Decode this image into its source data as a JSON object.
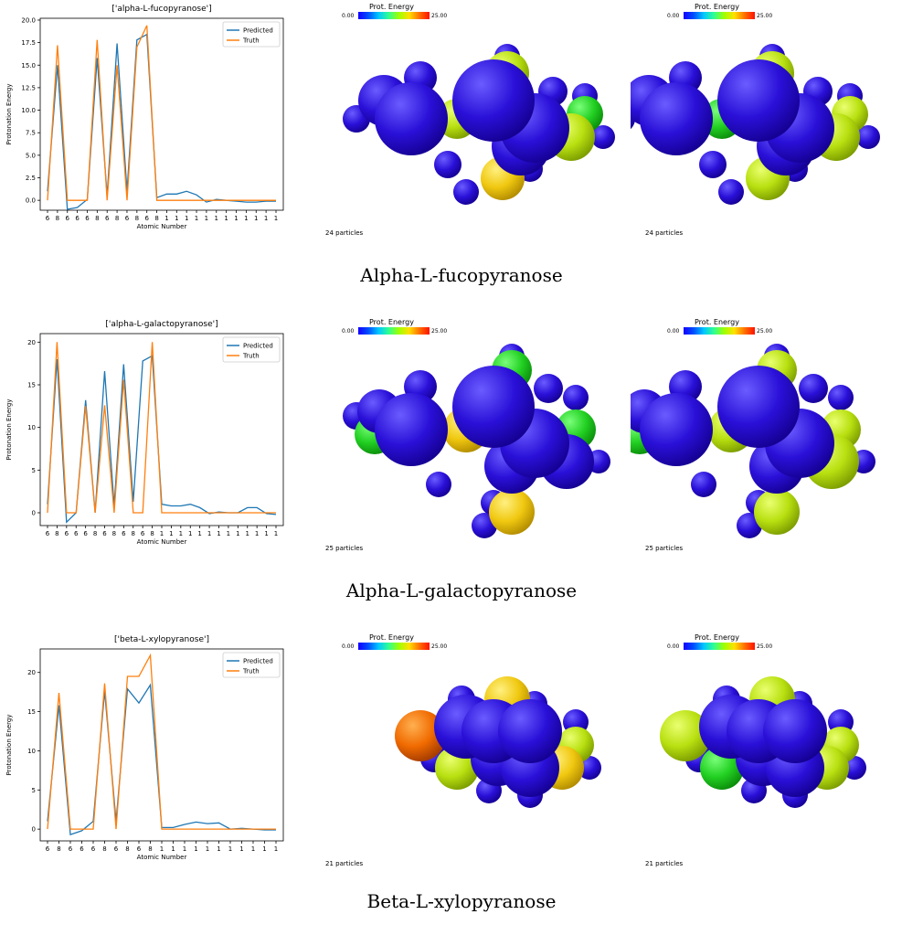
{
  "colorbar": {
    "title": "Prot. Energy",
    "min_label": "0.00",
    "max_label": "25.00"
  },
  "rows": [
    {
      "caption": "Alpha-L-fucopyranose",
      "particles_label": "24 particles",
      "panels": [
        {
          "balls": [
            [
              "blue",
              210,
              110,
              28
            ],
            [
              "blue",
              240,
              130,
              40
            ],
            [
              "blue",
              250,
              85,
              18
            ],
            [
              "blue",
              180,
              130,
              15
            ],
            [
              "blue",
              280,
              180,
              15
            ],
            [
              "yellow-green",
              290,
              130,
              22
            ],
            [
              "blue",
              330,
              110,
              45
            ],
            [
              "blue",
              375,
              140,
              38
            ],
            [
              "blue",
              360,
              160,
              32
            ],
            [
              "yellow-green",
              345,
              80,
              24
            ],
            [
              "blue",
              345,
              62,
              14
            ],
            [
              "blue",
              395,
              100,
              16
            ],
            [
              "blue",
              430,
              105,
              14
            ],
            [
              "green",
              430,
              125,
              20
            ],
            [
              "yellow-green",
              415,
              150,
              26
            ],
            [
              "blue",
              450,
              150,
              13
            ],
            [
              "yellow",
              340,
              195,
              24
            ],
            [
              "blue",
              300,
              210,
              14
            ],
            [
              "blue",
              345,
              185,
              14
            ],
            [
              "blue",
              370,
              185,
              14
            ]
          ]
        },
        {
          "balls": [
            [
              "blue",
              150,
              110,
              28
            ],
            [
              "blue",
              180,
              130,
              40
            ],
            [
              "blue",
              190,
              85,
              18
            ],
            [
              "blue",
              120,
              130,
              15
            ],
            [
              "blue",
              220,
              180,
              15
            ],
            [
              "green",
              230,
              130,
              22
            ],
            [
              "blue",
              270,
              110,
              45
            ],
            [
              "blue",
              315,
              140,
              38
            ],
            [
              "blue",
              300,
              160,
              32
            ],
            [
              "yellow-green",
              285,
              80,
              24
            ],
            [
              "blue",
              285,
              62,
              14
            ],
            [
              "blue",
              335,
              100,
              16
            ],
            [
              "blue",
              370,
              105,
              14
            ],
            [
              "yellow-green",
              370,
              125,
              20
            ],
            [
              "yellow-green",
              355,
              150,
              26
            ],
            [
              "blue",
              390,
              150,
              13
            ],
            [
              "yellow-green",
              280,
              195,
              24
            ],
            [
              "blue",
              240,
              210,
              14
            ],
            [
              "blue",
              285,
              185,
              14
            ],
            [
              "blue",
              310,
              185,
              14
            ]
          ]
        }
      ],
      "chart_data": {
        "type": "line",
        "title": "['alpha-L-fucopyranose']",
        "xlabel": "Atomic Number",
        "ylabel": "Protonation Energy",
        "categories": [
          "6",
          "8",
          "6",
          "6",
          "6",
          "8",
          "6",
          "8",
          "6",
          "8",
          "6",
          "8",
          "1",
          "1",
          "1",
          "1",
          "1",
          "1",
          "1",
          "1",
          "1",
          "1",
          "1",
          "1"
        ],
        "ylim": [
          -1.1,
          20.2
        ],
        "yticks": [
          "0.0",
          "2.5",
          "5.0",
          "7.5",
          "10.0",
          "12.5",
          "15.0",
          "17.5",
          "20.0"
        ],
        "ytick_values": [
          0,
          2.5,
          5,
          7.5,
          10,
          12.5,
          15,
          17.5,
          20
        ],
        "legend": "top-right",
        "series": [
          {
            "name": "Predicted",
            "color": "#1f77b4",
            "values": [
              1.0,
              15.0,
              -1.0,
              -0.8,
              0.1,
              15.8,
              0.5,
              17.4,
              1.0,
              17.8,
              18.4,
              0.3,
              0.7,
              0.7,
              1.0,
              0.6,
              -0.2,
              0.1,
              0.0,
              -0.1,
              -0.2,
              -0.2,
              -0.1,
              -0.1
            ]
          },
          {
            "name": "Truth",
            "color": "#ff7f0e",
            "values": [
              0.0,
              17.2,
              0.0,
              0.0,
              0.0,
              17.8,
              0.0,
              15.0,
              0.0,
              17.0,
              19.4,
              0.0,
              0.0,
              0.0,
              0.0,
              0.0,
              0.0,
              0.0,
              0.0,
              0.0,
              0.0,
              0.0,
              0.0,
              0.0
            ]
          }
        ]
      }
    },
    {
      "caption": "Alpha-L-galactopyranose",
      "particles_label": "25 particles",
      "panels": [
        {
          "balls": [
            [
              "blue",
              205,
              105,
              24
            ],
            [
              "blue",
              240,
              125,
              40
            ],
            [
              "blue",
              250,
              78,
              18
            ],
            [
              "blue",
              180,
              110,
              15
            ],
            [
              "green",
              200,
              130,
              22
            ],
            [
              "yellow",
              300,
              125,
              25
            ],
            [
              "blue",
              330,
              100,
              45
            ],
            [
              "blue",
              375,
              140,
              38
            ],
            [
              "green",
              350,
              60,
              22
            ],
            [
              "blue",
              350,
              45,
              14
            ],
            [
              "blue",
              390,
              80,
              16
            ],
            [
              "blue",
              420,
              90,
              14
            ],
            [
              "green",
              420,
              125,
              22
            ],
            [
              "blue",
              410,
              160,
              30
            ],
            [
              "blue",
              445,
              160,
              13
            ],
            [
              "blue",
              350,
              165,
              30
            ],
            [
              "blue",
              330,
              205,
              14
            ],
            [
              "yellow",
              350,
              215,
              25
            ],
            [
              "blue",
              320,
              230,
              14
            ],
            [
              "blue",
              270,
              185,
              14
            ]
          ]
        },
        {
          "balls": [
            [
              "blue",
              145,
              105,
              24
            ],
            [
              "blue",
              180,
              125,
              40
            ],
            [
              "blue",
              190,
              78,
              18
            ],
            [
              "blue",
              120,
              110,
              15
            ],
            [
              "green",
              140,
              130,
              22
            ],
            [
              "yellow-green",
              240,
              125,
              25
            ],
            [
              "blue",
              270,
              100,
              45
            ],
            [
              "blue",
              315,
              140,
              38
            ],
            [
              "yellow-green",
              290,
              60,
              22
            ],
            [
              "blue",
              290,
              45,
              14
            ],
            [
              "blue",
              330,
              80,
              16
            ],
            [
              "blue",
              360,
              90,
              14
            ],
            [
              "yellow-green",
              360,
              125,
              22
            ],
            [
              "yellow-green",
              350,
              160,
              30
            ],
            [
              "blue",
              385,
              160,
              13
            ],
            [
              "blue",
              290,
              165,
              30
            ],
            [
              "blue",
              270,
              205,
              14
            ],
            [
              "yellow-green",
              290,
              215,
              25
            ],
            [
              "blue",
              260,
              230,
              14
            ],
            [
              "blue",
              210,
              185,
              14
            ]
          ]
        }
      ],
      "chart_data": {
        "type": "line",
        "title": "['alpha-L-galactopyranose']",
        "xlabel": "Atomic Number",
        "ylabel": "Protonation Energy",
        "categories": [
          "6",
          "8",
          "6",
          "6",
          "6",
          "8",
          "6",
          "8",
          "6",
          "8",
          "6",
          "8",
          "1",
          "1",
          "1",
          "1",
          "1",
          "1",
          "1",
          "1",
          "1",
          "1",
          "1",
          "1",
          "1"
        ],
        "ylim": [
          -1.5,
          21.0
        ],
        "yticks": [
          "0",
          "5",
          "10",
          "15",
          "20"
        ],
        "ytick_values": [
          0,
          5,
          10,
          15,
          20
        ],
        "legend": "top-right",
        "series": [
          {
            "name": "Predicted",
            "color": "#1f77b4",
            "values": [
              1.0,
              18.0,
              -1.1,
              0.0,
              13.2,
              0.0,
              16.6,
              0.8,
              17.4,
              1.3,
              17.8,
              18.4,
              1.0,
              0.8,
              0.8,
              1.0,
              0.6,
              -0.1,
              0.1,
              0.0,
              0.0,
              0.6,
              0.6,
              -0.1,
              -0.2
            ]
          },
          {
            "name": "Truth",
            "color": "#ff7f0e",
            "values": [
              0.0,
              20.0,
              0.0,
              0.0,
              12.5,
              0.0,
              12.6,
              0.0,
              15.6,
              0.0,
              0.0,
              20.0,
              0.0,
              0.0,
              0.0,
              0.0,
              0.0,
              0.0,
              0.0,
              0.0,
              0.0,
              0.0,
              0.0,
              0.0,
              0.0
            ]
          }
        ]
      }
    },
    {
      "caption": "Beta-L-xylopyranose",
      "particles_label": "21 particles",
      "panels": [
        {
          "balls": [
            [
              "orange",
              250,
              115,
              28
            ],
            [
              "blue",
              300,
              105,
              35
            ],
            [
              "blue",
              295,
              75,
              15
            ],
            [
              "blue",
              265,
              140,
              15
            ],
            [
              "yellow-green",
              290,
              150,
              24
            ],
            [
              "yellow",
              345,
              75,
              25
            ],
            [
              "blue",
              330,
              110,
              35
            ],
            [
              "blue",
              370,
              110,
              35
            ],
            [
              "blue",
              375,
              80,
              14
            ],
            [
              "blue",
              420,
              100,
              14
            ],
            [
              "yellow-green",
              420,
              125,
              20
            ],
            [
              "blue",
              335,
              140,
              30
            ],
            [
              "blue",
              370,
              150,
              32
            ],
            [
              "yellow",
              405,
              150,
              24
            ],
            [
              "blue",
              435,
              150,
              13
            ],
            [
              "blue",
              325,
              175,
              14
            ],
            [
              "blue",
              370,
              180,
              14
            ],
            [
              "blue",
              335,
              115,
              14
            ]
          ]
        },
        {
          "balls": [
            [
              "yellow-green",
              190,
              115,
              28
            ],
            [
              "blue",
              240,
              105,
              35
            ],
            [
              "blue",
              235,
              75,
              15
            ],
            [
              "blue",
              205,
              140,
              15
            ],
            [
              "green",
              230,
              150,
              24
            ],
            [
              "yellow-green",
              285,
              75,
              25
            ],
            [
              "blue",
              270,
              110,
              35
            ],
            [
              "blue",
              310,
              110,
              35
            ],
            [
              "blue",
              315,
              80,
              14
            ],
            [
              "blue",
              360,
              100,
              14
            ],
            [
              "yellow-green",
              360,
              125,
              20
            ],
            [
              "blue",
              275,
              140,
              30
            ],
            [
              "blue",
              310,
              150,
              32
            ],
            [
              "yellow-green",
              345,
              150,
              24
            ],
            [
              "blue",
              375,
              150,
              13
            ],
            [
              "blue",
              265,
              175,
              14
            ],
            [
              "blue",
              310,
              180,
              14
            ],
            [
              "blue",
              275,
              115,
              14
            ]
          ]
        }
      ],
      "chart_data": {
        "type": "line",
        "title": "['beta-L-xylopyranose']",
        "xlabel": "Atomic Number",
        "ylabel": "Protonation Energy",
        "categories": [
          "6",
          "8",
          "6",
          "6",
          "6",
          "8",
          "6",
          "8",
          "6",
          "8",
          "1",
          "1",
          "1",
          "1",
          "1",
          "1",
          "1",
          "1",
          "1",
          "1",
          "1"
        ],
        "ylim": [
          -1.5,
          23.0
        ],
        "yticks": [
          "0",
          "5",
          "10",
          "15",
          "20"
        ],
        "ytick_values": [
          0,
          5,
          10,
          15,
          20
        ],
        "legend": "top-right",
        "series": [
          {
            "name": "Predicted",
            "color": "#1f77b4",
            "values": [
              1.0,
              15.8,
              -0.7,
              -0.2,
              1.0,
              17.6,
              1.0,
              17.9,
              16.1,
              18.4,
              0.2,
              0.2,
              0.6,
              0.9,
              0.7,
              0.8,
              0.0,
              0.1,
              0.0,
              -0.1,
              -0.1
            ]
          },
          {
            "name": "Truth",
            "color": "#ff7f0e",
            "values": [
              0.0,
              17.4,
              0.0,
              0.0,
              0.0,
              18.6,
              0.0,
              19.5,
              19.5,
              22.2,
              0.0,
              0.0,
              0.0,
              0.0,
              0.0,
              0.0,
              0.0,
              0.0,
              0.0,
              0.0,
              0.0
            ]
          }
        ]
      }
    }
  ]
}
